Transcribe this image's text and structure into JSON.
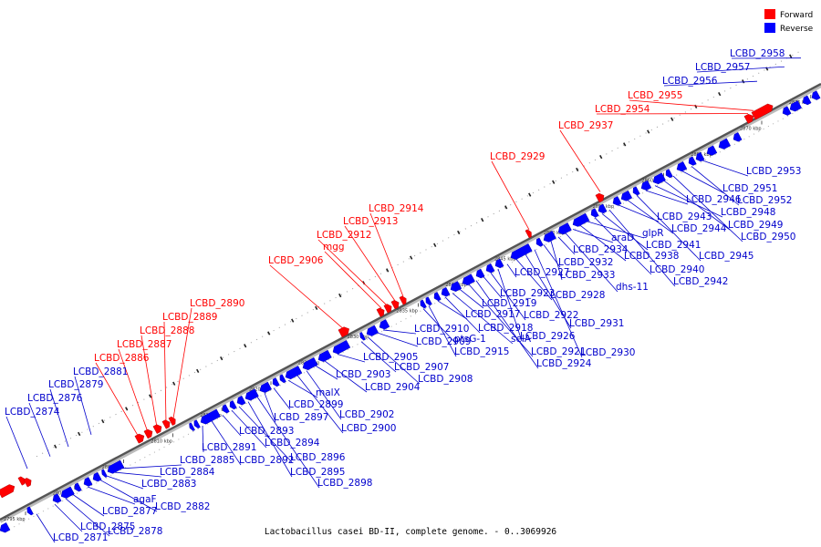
{
  "legend": [
    {
      "label": "Forward",
      "color": "#ff0000"
    },
    {
      "label": "Reverse",
      "color": "#0000ff"
    }
  ],
  "caption": "Lactobacillus casei BD-II, complete genome. - 0..3069926",
  "ticks": [
    "2795 kbp",
    "2800 kbp",
    "2805 kbp",
    "2810 kbp",
    "2815 kbp",
    "2820 kbp",
    "2825 kbp",
    "2830 kbp",
    "2835 kbp",
    "2840 kbp",
    "2845 kbp",
    "2850 kbp",
    "2855 kbp",
    "2860 kbp",
    "2865 kbp",
    "2870 kbp",
    "2875 kbp"
  ],
  "forward_labels": [
    "LCBD_2886",
    "LCBD_2887",
    "LCBD_2888",
    "LCBD_2889",
    "LCBD_2890",
    "LCBD_2906",
    "mgg",
    "LCBD_2912",
    "LCBD_2913",
    "LCBD_2914",
    "LCBD_2929",
    "LCBD_2937",
    "LCBD_2954",
    "LCBD_2955"
  ],
  "reverse_top_labels": [
    "LCBD_2874",
    "LCBD_2876",
    "LCBD_2879",
    "LCBD_2881",
    "LCBD_2956",
    "LCBD_2957",
    "LCBD_2958"
  ],
  "reverse_bottom_labels": [
    "LCBD_2871",
    "LCBD_2875",
    "LCBD_2878",
    "LCBD_2877",
    "agaF",
    "LCBD_2882",
    "LCBD_2883",
    "LCBD_2884",
    "LCBD_2885",
    "LCBD_2891",
    "LCBD_2892",
    "LCBD_2893",
    "LCBD_2894",
    "LCBD_2896",
    "LCBD_2895",
    "LCBD_2898",
    "LCBD_2897",
    "LCBD_2899",
    "malX",
    "LCBD_2900",
    "LCBD_2902",
    "LCBD_2903",
    "LCBD_2904",
    "LCBD_2905",
    "LCBD_2907",
    "LCBD_2908",
    "LCBD_2909",
    "LCBD_2910",
    "ptsG-1",
    "LCBD_2915",
    "LCBD_2917",
    "LCBD_2918",
    "selA",
    "LCBD_2919",
    "LCBD_2921",
    "LCBD_2924",
    "LCBD_2923",
    "LCBD_2922",
    "LCBD_2926",
    "LCBD_2927",
    "LCBD_2928",
    "LCBD_2931",
    "LCBD_2930",
    "LCBD_2932",
    "LCBD_2933",
    "LCBD_2934",
    "dhs-11",
    "araD",
    "LCBD_2938",
    "glpR",
    "LCBD_2940",
    "LCBD_2941",
    "LCBD_2942",
    "LCBD_2943",
    "LCBD_2944",
    "LCBD_2945",
    "LCBD_2946",
    "LCBD_2948",
    "LCBD_2949",
    "LCBD_2950",
    "LCBD_2951",
    "LCBD_2952",
    "LCBD_2953"
  ]
}
